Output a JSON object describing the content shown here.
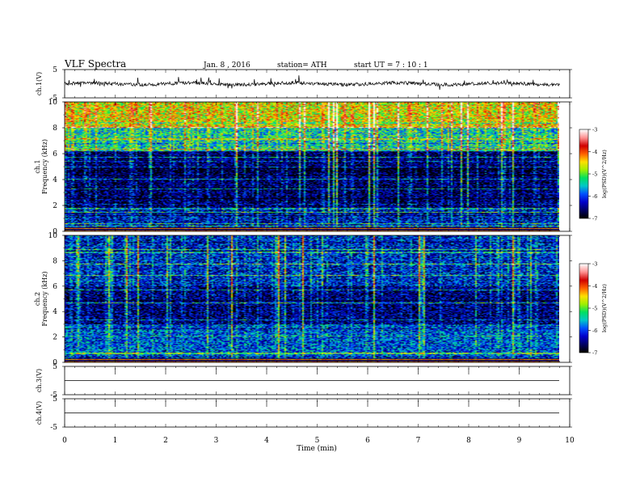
{
  "header": {
    "title": "VLF  Spectra",
    "date": "Jan. 8 , 2016",
    "station": "station= ATH",
    "start": "start  UT  =   7 : 10 : 1"
  },
  "chart_data": [
    {
      "type": "line",
      "name": "ch1-waveform",
      "ylabel": "ch.1(V)",
      "ylim": [
        -5,
        5
      ],
      "yticks": [
        "5",
        "-5"
      ],
      "xlim": [
        0,
        10
      ],
      "approx_level": 0.0,
      "data_end_min": 9.8
    },
    {
      "type": "heatmap",
      "name": "ch1-spectrogram",
      "ylabel": "ch.1\nFrequency  (kHz)",
      "ylabel_line1": "ch.1",
      "ylabel_line2": "Frequency  (kHz)",
      "ylim": [
        0,
        10
      ],
      "yticks": [
        "10",
        "8",
        "6",
        "4",
        "2",
        "0"
      ],
      "xlim": [
        0,
        10
      ],
      "colorbar": {
        "label": "log(PSD)(V^2/Hz)",
        "range": [
          -7,
          -3
        ],
        "ticks": [
          "-3",
          "-4",
          "-5",
          "-6",
          "-7"
        ]
      },
      "bands": [
        {
          "f": [
            0,
            1.7
          ],
          "logpsd": -6.3
        },
        {
          "f": [
            1.7,
            6.2
          ],
          "logpsd": -6.7
        },
        {
          "f": [
            6.2,
            8.0
          ],
          "logpsd": -5.4
        },
        {
          "f": [
            8.0,
            10
          ],
          "logpsd": -4.6
        }
      ]
    },
    {
      "type": "heatmap",
      "name": "ch2-spectrogram",
      "ylabel_line1": "ch.2",
      "ylabel_line2": "Frequency  (kHz)",
      "ylim": [
        0,
        10
      ],
      "yticks": [
        "10",
        "8",
        "6",
        "4",
        "2",
        "0"
      ],
      "xlim": [
        0,
        10
      ],
      "colorbar": {
        "label": "log(PSD)(V^2/Hz)",
        "range": [
          -7,
          -3
        ],
        "ticks": [
          "-3",
          "-4",
          "-5",
          "-6",
          "-7"
        ]
      },
      "bands": [
        {
          "f": [
            0,
            3.0
          ],
          "logpsd": -6.0
        },
        {
          "f": [
            3.0,
            6.0
          ],
          "logpsd": -6.6
        },
        {
          "f": [
            6.0,
            10
          ],
          "logpsd": -6.2
        }
      ]
    },
    {
      "type": "line",
      "name": "ch3-waveform",
      "ylabel": "ch.3(V)",
      "ylim": [
        -5,
        5
      ],
      "yticks": [
        "5",
        "-5"
      ],
      "approx_level": 0.0
    },
    {
      "type": "line",
      "name": "ch4-waveform",
      "ylabel": "ch.4(V)",
      "ylim": [
        -5,
        5
      ],
      "yticks": [
        "5",
        "-5"
      ],
      "approx_level": 0.0
    }
  ],
  "xaxis": {
    "label": "Time  (min)",
    "ticks": [
      "0",
      "1",
      "2",
      "3",
      "4",
      "5",
      "6",
      "7",
      "8",
      "9",
      "10"
    ],
    "range": [
      0,
      10
    ]
  },
  "colormap": [
    "#000000",
    "#000066",
    "#0000cc",
    "#0050ff",
    "#00c8c8",
    "#00e060",
    "#a0f000",
    "#ffe000",
    "#ff6000",
    "#d00000",
    "#ff9090",
    "#ffffff"
  ]
}
